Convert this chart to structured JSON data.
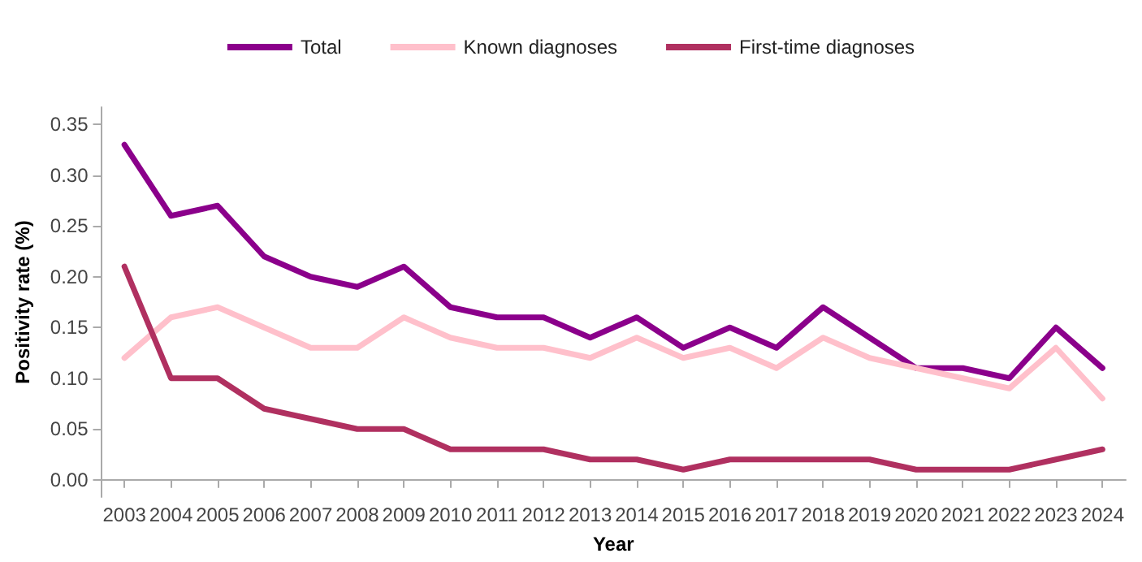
{
  "chart_data": {
    "type": "line",
    "xlabel": "Year",
    "ylabel": "Positivity rate (%)",
    "categories": [
      "2003",
      "2004",
      "2005",
      "2006",
      "2007",
      "2008",
      "2009",
      "2010",
      "2011",
      "2012",
      "2013",
      "2014",
      "2015",
      "2016",
      "2017",
      "2018",
      "2019",
      "2020",
      "2021",
      "2022",
      "2023",
      "2024"
    ],
    "series": [
      {
        "name": "Total",
        "color": "#8b008b",
        "values": [
          0.33,
          0.26,
          0.27,
          0.22,
          0.2,
          0.19,
          0.21,
          0.17,
          0.16,
          0.16,
          0.14,
          0.16,
          0.13,
          0.15,
          0.13,
          0.17,
          0.14,
          0.11,
          0.11,
          0.1,
          0.15,
          0.11
        ]
      },
      {
        "name": "Known diagnoses",
        "color": "#ffc0cb",
        "values": [
          0.12,
          0.16,
          0.17,
          0.15,
          0.13,
          0.13,
          0.16,
          0.14,
          0.13,
          0.13,
          0.12,
          0.14,
          0.12,
          0.13,
          0.11,
          0.14,
          0.12,
          0.11,
          0.1,
          0.09,
          0.13,
          0.08
        ]
      },
      {
        "name": "First-time diagnoses",
        "color": "#b03060",
        "values": [
          0.21,
          0.1,
          0.1,
          0.07,
          0.06,
          0.05,
          0.05,
          0.03,
          0.03,
          0.03,
          0.02,
          0.02,
          0.01,
          0.02,
          0.02,
          0.02,
          0.02,
          0.01,
          0.01,
          0.01,
          0.02,
          0.03
        ]
      }
    ],
    "ylim": [
      -0.017,
      0.367
    ],
    "yticks": [
      {
        "value": 0,
        "label": "0.00"
      },
      {
        "value": 0.05,
        "label": "0.05"
      },
      {
        "value": 0.1,
        "label": "0.10"
      },
      {
        "value": 0.15,
        "label": "0.15"
      },
      {
        "value": 0.2,
        "label": "0.20"
      },
      {
        "value": 0.25,
        "label": "0.25"
      },
      {
        "value": 0.3,
        "label": "0.30"
      },
      {
        "value": 0.35,
        "label": "0.35"
      }
    ],
    "grid": false,
    "legend": "top",
    "marker": "none",
    "line_style": "solid"
  }
}
